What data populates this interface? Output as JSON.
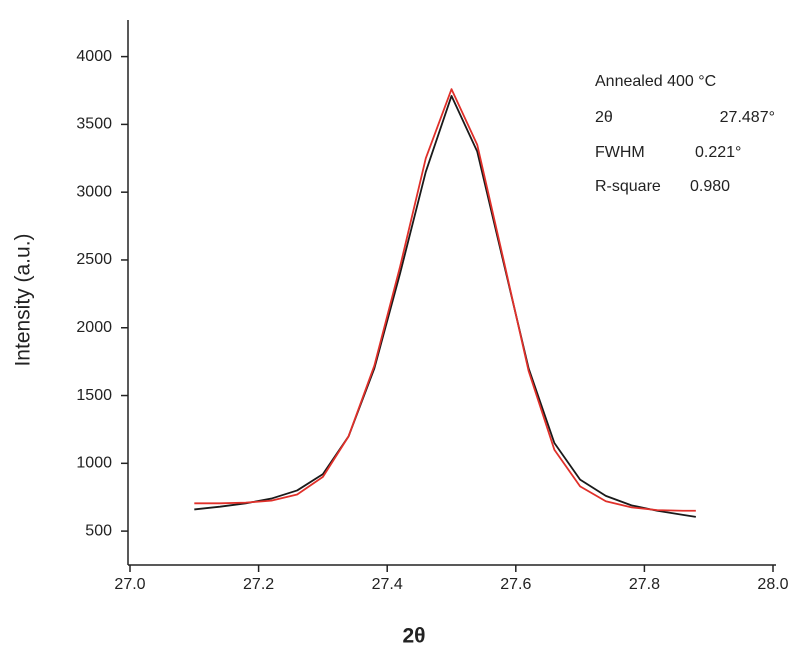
{
  "chart_data": {
    "type": "line",
    "xlabel": "2θ",
    "ylabel": "Intensity (a.u.)",
    "annotations": [
      "Annealed 400 °C",
      "2θ",
      "27.487°",
      "FWHM",
      "0.221°",
      "R-square",
      "0.980"
    ],
    "x": [
      27.1,
      27.14,
      27.18,
      27.22,
      27.26,
      27.3,
      27.34,
      27.38,
      27.42,
      27.46,
      27.5,
      27.54,
      27.58,
      27.62,
      27.66,
      27.7,
      27.74,
      27.78,
      27.82,
      27.86,
      27.88
    ],
    "series": [
      {
        "color": "#1a1a1a",
        "values": [
          660,
          680,
          705,
          740,
          800,
          920,
          1200,
          1700,
          2400,
          3150,
          3710,
          3300,
          2500,
          1700,
          1150,
          880,
          760,
          690,
          650,
          620,
          605
        ]
      },
      {
        "color": "#e0302a",
        "values": [
          705,
          705,
          710,
          725,
          770,
          900,
          1200,
          1720,
          2450,
          3250,
          3760,
          3350,
          2520,
          1680,
          1100,
          830,
          720,
          675,
          655,
          650,
          650
        ]
      }
    ],
    "xlim": [
      27.0,
      28.0
    ],
    "xticks": [
      {
        "value": 27,
        "label": "27.0"
      },
      27.2,
      27.4,
      27.6,
      27.8,
      {
        "value": 28,
        "label": "28.0"
      }
    ],
    "ylim": [
      250,
      4270
    ],
    "yticks": [
      500,
      1000,
      1500,
      2000,
      2500,
      3000,
      3500,
      4000
    ]
  }
}
